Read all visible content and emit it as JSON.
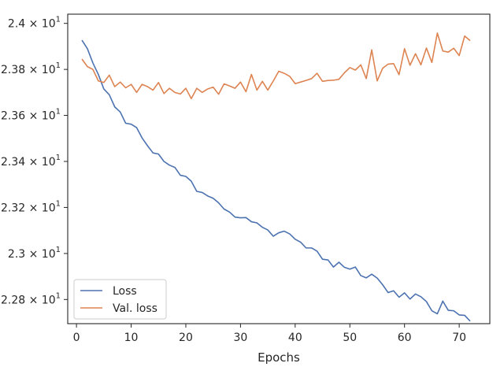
{
  "chart_data": {
    "type": "line",
    "title": "",
    "xlabel": "Epochs",
    "ylabel": "",
    "xlim": [
      -1.6,
      75.6
    ],
    "ylim": [
      22.695,
      24.04
    ],
    "x_ticks": [
      0,
      10,
      20,
      30,
      40,
      50,
      60,
      70
    ],
    "x_tick_labels": [
      "0",
      "10",
      "20",
      "30",
      "40",
      "50",
      "60",
      "70"
    ],
    "y_ticks": [
      22.8,
      23.0,
      23.2,
      23.4,
      23.6,
      23.8,
      24.0
    ],
    "y_tick_labels": [
      "2.28",
      "2.3",
      "2.32",
      "2.34",
      "2.36",
      "2.38",
      "2.4"
    ],
    "y_tick_exponent": "× 10",
    "y_tick_power": "1",
    "grid": false,
    "legend_position": "lower-left",
    "x": [
      1,
      2,
      3,
      4,
      5,
      6,
      7,
      8,
      9,
      10,
      11,
      12,
      13,
      14,
      15,
      16,
      17,
      18,
      19,
      20,
      21,
      22,
      23,
      24,
      25,
      26,
      27,
      28,
      29,
      30,
      31,
      32,
      33,
      34,
      35,
      36,
      37,
      38,
      39,
      40,
      41,
      42,
      43,
      44,
      45,
      46,
      47,
      48,
      49,
      50,
      51,
      52,
      53,
      54,
      55,
      56,
      57,
      58,
      59,
      60,
      61,
      62,
      63,
      64,
      65,
      66,
      67,
      68,
      69,
      70,
      71,
      72
    ],
    "series": [
      {
        "name": "Loss",
        "color": "#4c72b0",
        "values": [
          23.927,
          23.89,
          23.828,
          23.778,
          23.715,
          23.69,
          23.637,
          23.615,
          23.566,
          23.562,
          23.547,
          23.502,
          23.468,
          23.437,
          23.432,
          23.4,
          23.384,
          23.374,
          23.34,
          23.335,
          23.314,
          23.27,
          23.265,
          23.25,
          23.24,
          23.22,
          23.193,
          23.18,
          23.158,
          23.155,
          23.156,
          23.138,
          23.133,
          23.114,
          23.102,
          23.075,
          23.09,
          23.097,
          23.085,
          23.062,
          23.049,
          23.024,
          23.024,
          23.01,
          22.975,
          22.972,
          22.941,
          22.962,
          22.94,
          22.932,
          22.941,
          22.904,
          22.894,
          22.91,
          22.893,
          22.864,
          22.83,
          22.838,
          22.81,
          22.829,
          22.802,
          22.824,
          22.812,
          22.791,
          22.751,
          22.738,
          22.793,
          22.753,
          22.751,
          22.733,
          22.731,
          22.706
        ]
      },
      {
        "name": "Val. loss",
        "color": "#dd8452",
        "values": [
          23.845,
          23.812,
          23.8,
          23.75,
          23.743,
          23.775,
          23.725,
          23.745,
          23.72,
          23.735,
          23.7,
          23.735,
          23.725,
          23.71,
          23.743,
          23.695,
          23.718,
          23.7,
          23.693,
          23.718,
          23.673,
          23.718,
          23.7,
          23.715,
          23.723,
          23.692,
          23.737,
          23.728,
          23.718,
          23.745,
          23.703,
          23.778,
          23.71,
          23.748,
          23.71,
          23.75,
          23.792,
          23.783,
          23.77,
          23.738,
          23.745,
          23.752,
          23.76,
          23.783,
          23.748,
          23.752,
          23.753,
          23.757,
          23.785,
          23.808,
          23.797,
          23.82,
          23.76,
          23.885,
          23.75,
          23.805,
          23.823,
          23.825,
          23.777,
          23.89,
          23.818,
          23.868,
          23.82,
          23.893,
          23.83,
          23.958,
          23.88,
          23.875,
          23.892,
          23.86,
          23.945,
          23.925
        ]
      }
    ]
  }
}
